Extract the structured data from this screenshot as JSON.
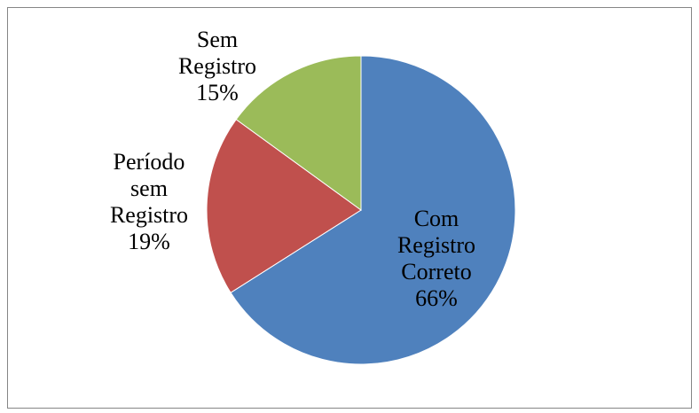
{
  "chart_data": {
    "type": "pie",
    "categories": [
      "Com Registro Correto",
      "Período sem Registro",
      "Sem Registro"
    ],
    "values": [
      66,
      19,
      15
    ],
    "value_labels": [
      "66%",
      "19%",
      "15%"
    ],
    "colors": [
      "#4f81bd",
      "#c0504d",
      "#9bbb59"
    ]
  }
}
